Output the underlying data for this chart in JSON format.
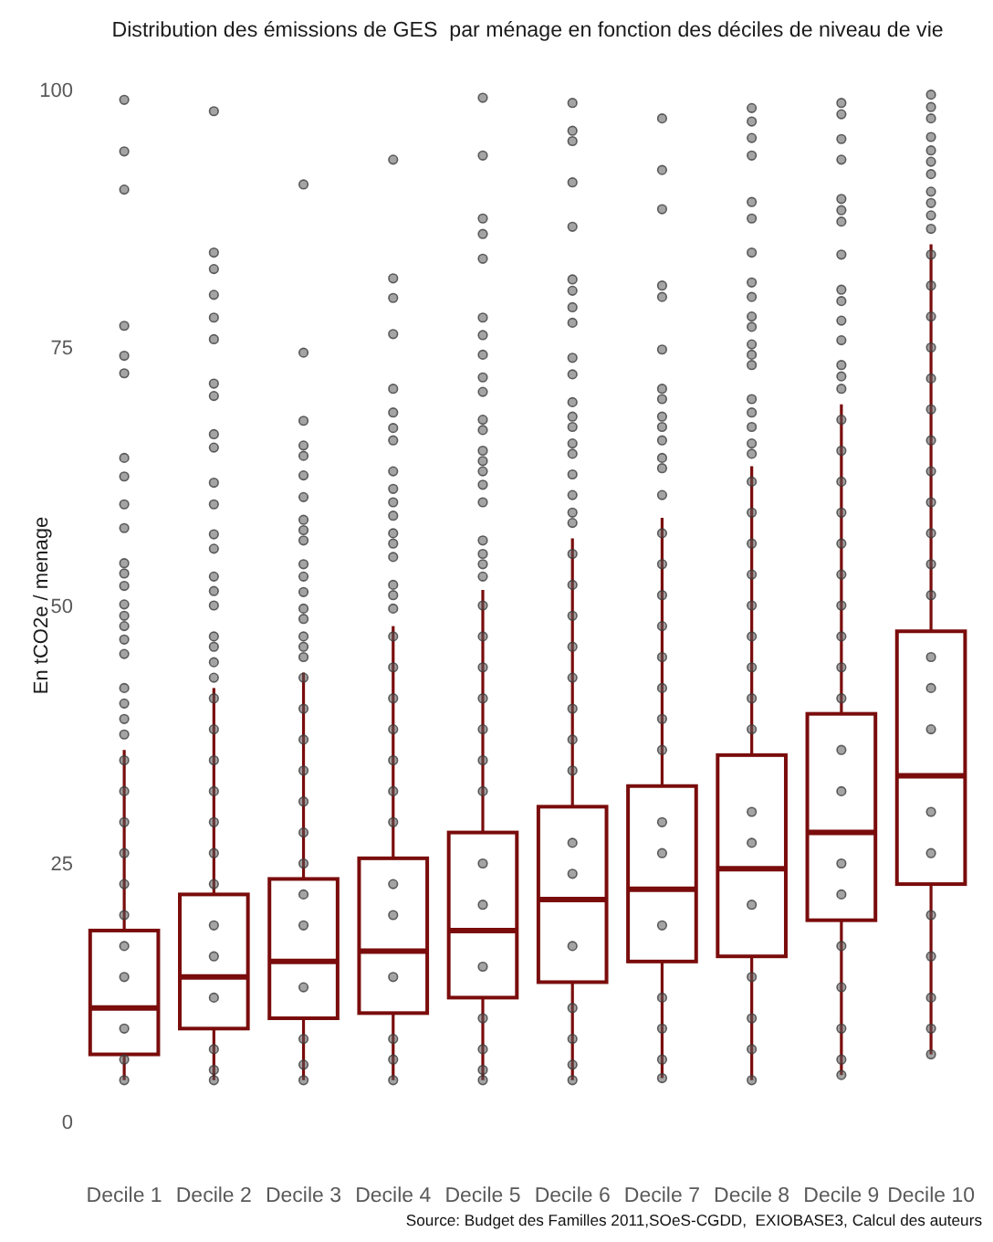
{
  "chart_data": {
    "type": "box",
    "title": "Distribution des émissions de GES  par ménage en fonction des déciles de niveau de vie",
    "ylabel": "En tCO2e / menage",
    "annotations": [
      "Source: Budget des Familles 2011,SOeS-CGDD,  EXIOBASE3, Calcul des auteurs"
    ],
    "categories": [
      "Decile 1",
      "Decile 2",
      "Decile 3",
      "Decile 4",
      "Decile 5",
      "Decile 6",
      "Decile 7",
      "Decile 8",
      "Decile 9",
      "Decile 10"
    ],
    "ylim": [
      0,
      100
    ],
    "yticks": [
      0,
      25,
      50,
      75,
      100
    ],
    "series": [
      {
        "color": "#7a0c0c",
        "boxes": [
          {
            "low": 4,
            "q1": 6.5,
            "median": 11,
            "q3": 18.5,
            "high": 36
          },
          {
            "low": 4,
            "q1": 9,
            "median": 14,
            "q3": 22,
            "high": 42
          },
          {
            "low": 4,
            "q1": 10,
            "median": 15.5,
            "q3": 23.5,
            "high": 43.5
          },
          {
            "low": 4,
            "q1": 10.5,
            "median": 16.5,
            "q3": 25.5,
            "high": 48
          },
          {
            "low": 4,
            "q1": 12,
            "median": 18.5,
            "q3": 28,
            "high": 51.5
          },
          {
            "low": 4,
            "q1": 13.5,
            "median": 21.5,
            "q3": 30.5,
            "high": 56.5
          },
          {
            "low": 4.2,
            "q1": 15.5,
            "median": 22.5,
            "q3": 32.5,
            "high": 58.5
          },
          {
            "low": 4,
            "q1": 16,
            "median": 24.5,
            "q3": 35.5,
            "high": 63.5
          },
          {
            "low": 4.5,
            "q1": 19.5,
            "median": 28,
            "q3": 39.5,
            "high": 69.5
          },
          {
            "low": 6.5,
            "q1": 23,
            "median": 33.5,
            "q3": 47.5,
            "high": 85
          }
        ]
      },
      {
        "type": "scatter",
        "color": "#5a5a5a",
        "x": [
          "Decile 1",
          "Decile 1",
          "Decile 1",
          "Decile 1",
          "Decile 1",
          "Decile 1",
          "Decile 1",
          "Decile 1",
          "Decile 1",
          "Decile 1",
          "Decile 1",
          "Decile 1",
          "Decile 1",
          "Decile 1",
          "Decile 1",
          "Decile 1",
          "Decile 1",
          "Decile 1",
          "Decile 1",
          "Decile 1",
          "Decile 1",
          "Decile 1",
          "Decile 1",
          "Decile 1",
          "Decile 1",
          "Decile 1",
          "Decile 1",
          "Decile 1",
          "Decile 1",
          "Decile 1",
          "Decile 1",
          "Decile 1",
          "Decile 1"
        ],
        "values": [
          99,
          94,
          90.3,
          77.1,
          74.2,
          72.5,
          64.3,
          62.5,
          59.8,
          57.5,
          54.1,
          53.1,
          51.9,
          50.1,
          49,
          48,
          46.7,
          45.3,
          42,
          40.5,
          39,
          37.5,
          35,
          32,
          29,
          26,
          23,
          20,
          17,
          14,
          9,
          6,
          4
        ]
      },
      {
        "type": "scatter",
        "color": "#5a5a5a",
        "x": [
          "Decile 2",
          "Decile 2",
          "Decile 2",
          "Decile 2",
          "Decile 2",
          "Decile 2",
          "Decile 2",
          "Decile 2",
          "Decile 2",
          "Decile 2",
          "Decile 2",
          "Decile 2",
          "Decile 2",
          "Decile 2",
          "Decile 2",
          "Decile 2",
          "Decile 2",
          "Decile 2",
          "Decile 2",
          "Decile 2",
          "Decile 2",
          "Decile 2",
          "Decile 2",
          "Decile 2",
          "Decile 2",
          "Decile 2",
          "Decile 2",
          "Decile 2",
          "Decile 2",
          "Decile 2",
          "Decile 2",
          "Decile 2",
          "Decile 2",
          "Decile 2"
        ],
        "values": [
          97.9,
          84.2,
          82.6,
          80.1,
          77.9,
          75.8,
          71.5,
          70.3,
          66.6,
          65.3,
          61.9,
          59.8,
          56.9,
          55.5,
          52.8,
          51.4,
          50,
          47,
          46,
          44.5,
          43,
          41,
          38,
          35,
          32,
          29,
          26,
          23,
          19,
          16,
          12,
          7,
          5,
          4
        ]
      },
      {
        "type": "scatter",
        "color": "#5a5a5a",
        "x": [
          "Decile 3",
          "Decile 3",
          "Decile 3",
          "Decile 3",
          "Decile 3",
          "Decile 3",
          "Decile 3",
          "Decile 3",
          "Decile 3",
          "Decile 3",
          "Decile 3",
          "Decile 3",
          "Decile 3",
          "Decile 3",
          "Decile 3",
          "Decile 3",
          "Decile 3",
          "Decile 3",
          "Decile 3",
          "Decile 3",
          "Decile 3",
          "Decile 3",
          "Decile 3",
          "Decile 3",
          "Decile 3",
          "Decile 3",
          "Decile 3",
          "Decile 3",
          "Decile 3",
          "Decile 3",
          "Decile 3"
        ],
        "values": [
          90.8,
          74.5,
          67.9,
          65.5,
          64.5,
          62.6,
          60.5,
          58.3,
          57.3,
          56.3,
          54,
          52.8,
          51.3,
          49.7,
          48.7,
          47,
          46,
          45,
          43,
          40,
          37,
          34,
          31,
          28,
          25,
          22,
          19,
          13,
          8,
          5.5,
          4
        ]
      },
      {
        "type": "scatter",
        "color": "#5a5a5a",
        "x": [
          "Decile 4",
          "Decile 4",
          "Decile 4",
          "Decile 4",
          "Decile 4",
          "Decile 4",
          "Decile 4",
          "Decile 4",
          "Decile 4",
          "Decile 4",
          "Decile 4",
          "Decile 4",
          "Decile 4",
          "Decile 4",
          "Decile 4",
          "Decile 4",
          "Decile 4",
          "Decile 4",
          "Decile 4",
          "Decile 4",
          "Decile 4",
          "Decile 4",
          "Decile 4",
          "Decile 4",
          "Decile 4",
          "Decile 4",
          "Decile 4",
          "Decile 4",
          "Decile 4",
          "Decile 4",
          "Decile 4"
        ],
        "values": [
          93.2,
          81.7,
          79.8,
          76.3,
          71,
          68.7,
          67.2,
          66,
          63,
          61.3,
          60,
          58.7,
          57,
          56,
          54.7,
          52,
          51,
          49.7,
          47,
          44,
          41,
          38,
          35,
          32,
          29,
          23,
          20,
          14,
          8,
          6,
          4
        ]
      },
      {
        "type": "scatter",
        "color": "#5a5a5a",
        "x": [
          "Decile 5",
          "Decile 5",
          "Decile 5",
          "Decile 5",
          "Decile 5",
          "Decile 5",
          "Decile 5",
          "Decile 5",
          "Decile 5",
          "Decile 5",
          "Decile 5",
          "Decile 5",
          "Decile 5",
          "Decile 5",
          "Decile 5",
          "Decile 5",
          "Decile 5",
          "Decile 5",
          "Decile 5",
          "Decile 5",
          "Decile 5",
          "Decile 5",
          "Decile 5",
          "Decile 5",
          "Decile 5",
          "Decile 5",
          "Decile 5",
          "Decile 5",
          "Decile 5",
          "Decile 5",
          "Decile 5",
          "Decile 5",
          "Decile 5",
          "Decile 5",
          "Decile 5"
        ],
        "values": [
          99.2,
          93.6,
          87.5,
          86,
          83.6,
          77.9,
          76.2,
          74.3,
          72.1,
          70.7,
          68,
          67,
          65,
          64,
          63,
          61.7,
          60,
          56.3,
          55,
          54,
          52.8,
          50,
          47,
          44,
          41,
          38,
          35,
          32,
          25,
          21,
          15,
          10,
          7,
          5,
          4
        ]
      },
      {
        "type": "scatter",
        "color": "#5a5a5a",
        "x": [
          "Decile 6",
          "Decile 6",
          "Decile 6",
          "Decile 6",
          "Decile 6",
          "Decile 6",
          "Decile 6",
          "Decile 6",
          "Decile 6",
          "Decile 6",
          "Decile 6",
          "Decile 6",
          "Decile 6",
          "Decile 6",
          "Decile 6",
          "Decile 6",
          "Decile 6",
          "Decile 6",
          "Decile 6",
          "Decile 6",
          "Decile 6",
          "Decile 6",
          "Decile 6",
          "Decile 6",
          "Decile 6",
          "Decile 6",
          "Decile 6",
          "Decile 6",
          "Decile 6",
          "Decile 6",
          "Decile 6",
          "Decile 6",
          "Decile 6",
          "Decile 6",
          "Decile 6"
        ],
        "values": [
          98.7,
          96,
          95,
          91,
          86.7,
          81.6,
          80.5,
          78.9,
          77.4,
          74,
          72.4,
          69.7,
          68.3,
          67.3,
          65.7,
          64.7,
          62.7,
          60.7,
          59,
          58,
          55,
          52,
          49,
          46,
          43,
          40,
          37,
          34,
          27,
          24,
          17,
          11,
          8,
          5.5,
          4
        ]
      },
      {
        "type": "scatter",
        "color": "#5a5a5a",
        "x": [
          "Decile 7",
          "Decile 7",
          "Decile 7",
          "Decile 7",
          "Decile 7",
          "Decile 7",
          "Decile 7",
          "Decile 7",
          "Decile 7",
          "Decile 7",
          "Decile 7",
          "Decile 7",
          "Decile 7",
          "Decile 7",
          "Decile 7",
          "Decile 7",
          "Decile 7",
          "Decile 7",
          "Decile 7",
          "Decile 7",
          "Decile 7",
          "Decile 7",
          "Decile 7",
          "Decile 7",
          "Decile 7",
          "Decile 7",
          "Decile 7",
          "Decile 7",
          "Decile 7"
        ],
        "values": [
          97.2,
          92.2,
          88.4,
          81,
          79.9,
          74.8,
          71,
          70,
          68.3,
          67.3,
          66,
          64.3,
          63.3,
          60.7,
          57,
          54,
          51,
          48,
          45,
          42,
          39,
          36,
          29,
          26,
          19,
          12,
          9,
          6,
          4.2
        ]
      },
      {
        "type": "scatter",
        "color": "#5a5a5a",
        "x": [
          "Decile 8",
          "Decile 8",
          "Decile 8",
          "Decile 8",
          "Decile 8",
          "Decile 8",
          "Decile 8",
          "Decile 8",
          "Decile 8",
          "Decile 8",
          "Decile 8",
          "Decile 8",
          "Decile 8",
          "Decile 8",
          "Decile 8",
          "Decile 8",
          "Decile 8",
          "Decile 8",
          "Decile 8",
          "Decile 8",
          "Decile 8",
          "Decile 8",
          "Decile 8",
          "Decile 8",
          "Decile 8",
          "Decile 8",
          "Decile 8",
          "Decile 8",
          "Decile 8",
          "Decile 8",
          "Decile 8",
          "Decile 8",
          "Decile 8",
          "Decile 8",
          "Decile 8"
        ],
        "values": [
          98.2,
          96.9,
          95.3,
          93.6,
          89.1,
          87.5,
          84.2,
          81.3,
          79.9,
          78,
          77,
          75.3,
          74.3,
          73.3,
          70,
          68.7,
          67.3,
          65.7,
          64.7,
          62,
          59,
          56,
          53,
          50,
          47,
          44,
          41,
          38,
          30,
          27,
          21,
          14,
          10,
          7,
          4
        ]
      },
      {
        "type": "scatter",
        "color": "#5a5a5a",
        "x": [
          "Decile 9",
          "Decile 9",
          "Decile 9",
          "Decile 9",
          "Decile 9",
          "Decile 9",
          "Decile 9",
          "Decile 9",
          "Decile 9",
          "Decile 9",
          "Decile 9",
          "Decile 9",
          "Decile 9",
          "Decile 9",
          "Decile 9",
          "Decile 9",
          "Decile 9",
          "Decile 9",
          "Decile 9",
          "Decile 9",
          "Decile 9",
          "Decile 9",
          "Decile 9",
          "Decile 9",
          "Decile 9",
          "Decile 9",
          "Decile 9",
          "Decile 9",
          "Decile 9",
          "Decile 9",
          "Decile 9",
          "Decile 9",
          "Decile 9",
          "Decile 9"
        ],
        "values": [
          98.7,
          97.6,
          95.2,
          93.2,
          89.4,
          88.3,
          87.2,
          84,
          80.6,
          79.5,
          77.6,
          75.7,
          73.3,
          72.2,
          71,
          68,
          65,
          62,
          59,
          56,
          53,
          50,
          47,
          44,
          41,
          36,
          32,
          25,
          22,
          17,
          13,
          9,
          6,
          4.5
        ]
      },
      {
        "type": "scatter",
        "color": "#5a5a5a",
        "x": [
          "Decile 10",
          "Decile 10",
          "Decile 10",
          "Decile 10",
          "Decile 10",
          "Decile 10",
          "Decile 10",
          "Decile 10",
          "Decile 10",
          "Decile 10",
          "Decile 10",
          "Decile 10",
          "Decile 10",
          "Decile 10",
          "Decile 10",
          "Decile 10",
          "Decile 10",
          "Decile 10",
          "Decile 10",
          "Decile 10",
          "Decile 10",
          "Decile 10",
          "Decile 10",
          "Decile 10",
          "Decile 10",
          "Decile 10",
          "Decile 10",
          "Decile 10",
          "Decile 10",
          "Decile 10",
          "Decile 10",
          "Decile 10",
          "Decile 10"
        ],
        "values": [
          99.5,
          98.3,
          97.2,
          95.4,
          94.1,
          93,
          91.8,
          90.1,
          89,
          87.8,
          86.5,
          84,
          81,
          78,
          75,
          72,
          69,
          66,
          63,
          60,
          57,
          54,
          51,
          45,
          42,
          38,
          30,
          26,
          20,
          16,
          12,
          9,
          6.5
        ]
      }
    ]
  }
}
